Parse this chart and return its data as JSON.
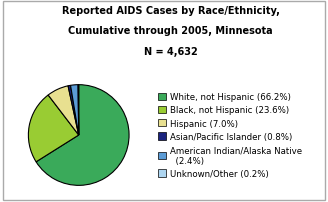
{
  "title_line1": "Reported AIDS Cases by Race/Ethnicity,",
  "title_line2": "Cumulative through 2005, Minnesota",
  "title_line3": "N = 4,632",
  "slices": [
    66.2,
    23.6,
    7.0,
    0.8,
    2.4,
    0.2
  ],
  "labels": [
    "White, not Hispanic (66.2%)",
    "Black, not Hispanic (23.6%)",
    "Hispanic (7.0%)",
    "Asian/Pacific Islander (0.8%)",
    "American Indian/Alaska Native\n  (2.4%)",
    "Unknown/Other (0.2%)"
  ],
  "colors": [
    "#3aaa5a",
    "#99cc33",
    "#e8e090",
    "#1a237e",
    "#5b9bd5",
    "#aed6f1"
  ],
  "background_color": "#ffffff",
  "border_color": "#aaaaaa",
  "title_fontsize": 7.0,
  "legend_fontsize": 6.2,
  "startangle": 90
}
